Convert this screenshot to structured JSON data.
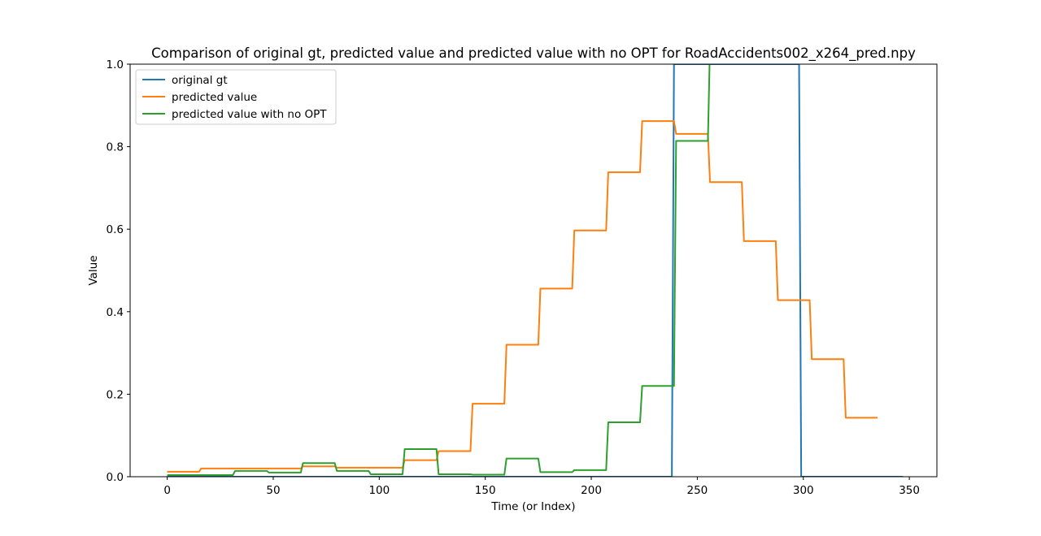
{
  "chart_data": {
    "type": "line",
    "title": "Comparison of original gt, predicted value and predicted value with no OPT for RoadAccidents002_x264_pred.npy",
    "xlabel": "Time (or Index)",
    "ylabel": "Value",
    "xlim": [
      -17.5,
      363
    ],
    "ylim": [
      0,
      1
    ],
    "xticks": [
      0,
      50,
      100,
      150,
      200,
      250,
      300,
      350
    ],
    "yticks": [
      0.0,
      0.2,
      0.4,
      0.6,
      0.8,
      1.0
    ],
    "xtick_labels": [
      "0",
      "50",
      "100",
      "150",
      "200",
      "250",
      "300",
      "350"
    ],
    "ytick_labels": [
      "0.0",
      "0.2",
      "0.4",
      "0.6",
      "0.8",
      "1.0"
    ],
    "grid": false,
    "legend_position": "top-left",
    "series": [
      {
        "name": "original gt",
        "color": "#1f77b4",
        "x": [
          0,
          238,
          239,
          298,
          299,
          347
        ],
        "y": [
          0,
          0,
          1.0,
          1.0,
          0,
          0
        ]
      },
      {
        "name": "predicted value",
        "color": "#ff7f0e",
        "x": [
          0,
          15,
          16,
          47,
          48,
          63,
          64,
          79,
          80,
          111,
          112,
          127,
          128,
          143,
          144,
          159,
          160,
          175,
          176,
          191,
          192,
          207,
          208,
          223,
          224,
          239,
          240,
          255,
          256,
          271,
          272,
          287,
          288,
          303,
          304,
          319,
          320,
          335
        ],
        "y": [
          0.012,
          0.012,
          0.02,
          0.02,
          0.02,
          0.02,
          0.025,
          0.025,
          0.022,
          0.022,
          0.04,
          0.04,
          0.062,
          0.062,
          0.177,
          0.177,
          0.32,
          0.32,
          0.456,
          0.456,
          0.597,
          0.597,
          0.738,
          0.738,
          0.862,
          0.862,
          0.831,
          0.831,
          0.714,
          0.714,
          0.571,
          0.571,
          0.428,
          0.428,
          0.285,
          0.285,
          0.143,
          0.143
        ]
      },
      {
        "name": "predicted value with no OPT",
        "color": "#2ca02c",
        "x": [
          0,
          31,
          32,
          47,
          48,
          63,
          64,
          79,
          80,
          95,
          96,
          111,
          112,
          127,
          128,
          143,
          144,
          159,
          160,
          175,
          176,
          191,
          192,
          207,
          208,
          223,
          224,
          239,
          240,
          255,
          256,
          260
        ],
        "y": [
          0.004,
          0.004,
          0.014,
          0.014,
          0.01,
          0.01,
          0.033,
          0.033,
          0.014,
          0.014,
          0.006,
          0.006,
          0.067,
          0.067,
          0.006,
          0.006,
          0.005,
          0.005,
          0.044,
          0.044,
          0.011,
          0.011,
          0.016,
          0.016,
          0.132,
          0.132,
          0.22,
          0.22,
          0.814,
          0.814,
          1.05,
          1.05
        ]
      }
    ]
  }
}
